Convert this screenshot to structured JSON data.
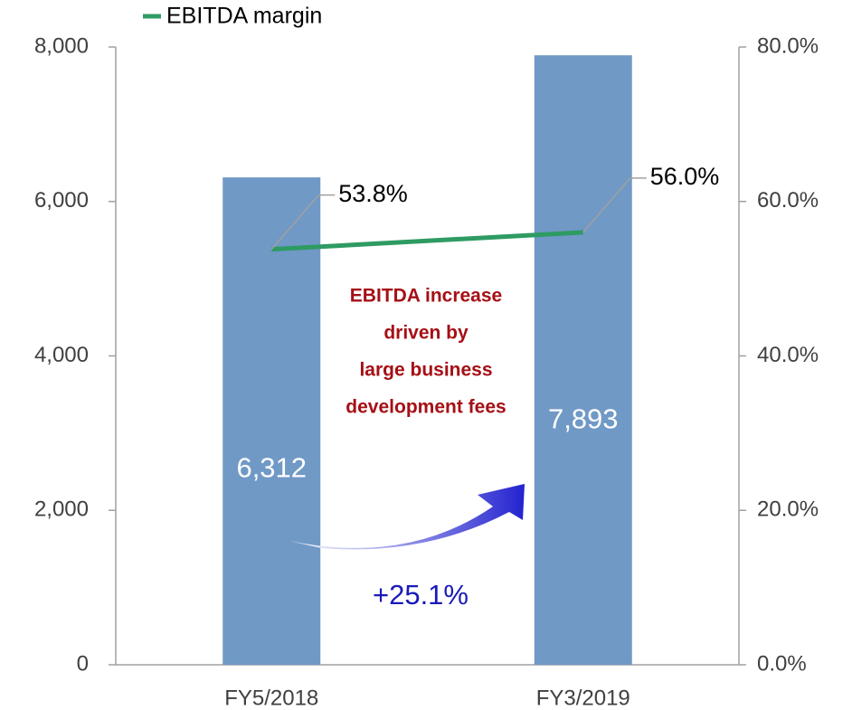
{
  "chart_data": {
    "type": "bar",
    "categories": [
      "FY5/2018",
      "FY3/2019"
    ],
    "series": [
      {
        "type": "bar",
        "color": "#7099c6",
        "values": [
          6312,
          7893
        ],
        "value_labels": [
          "6,312",
          "7,893"
        ]
      },
      {
        "type": "line",
        "name": "EBITDA margin",
        "color": "#2e9b63",
        "axis": "y2",
        "values": [
          53.8,
          56.0
        ],
        "value_labels": [
          "53.8%",
          "56.0%"
        ]
      }
    ],
    "ylim": [
      0,
      8000
    ],
    "yticks": [
      {
        "value": 0,
        "label": "0"
      },
      {
        "value": 2000,
        "label": "2,000"
      },
      {
        "value": 4000,
        "label": "4,000"
      },
      {
        "value": 6000,
        "label": "6,000"
      },
      {
        "value": 8000,
        "label": "8,000"
      }
    ],
    "y2lim": [
      0,
      80
    ],
    "y2ticks": [
      {
        "value": 0,
        "label": "0.0%"
      },
      {
        "value": 20,
        "label": "20.0%"
      },
      {
        "value": 40,
        "label": "40.0%"
      },
      {
        "value": 60,
        "label": "60.0%"
      },
      {
        "value": 80,
        "label": "80.0%"
      }
    ],
    "legend": "top-left",
    "annotations": [
      {
        "lines": [
          "EBITDA increase",
          "driven by",
          "large business",
          "development fees"
        ],
        "color": "#a50f15"
      },
      {
        "text": "+25.1%",
        "color": "#1a1ab8"
      }
    ]
  }
}
